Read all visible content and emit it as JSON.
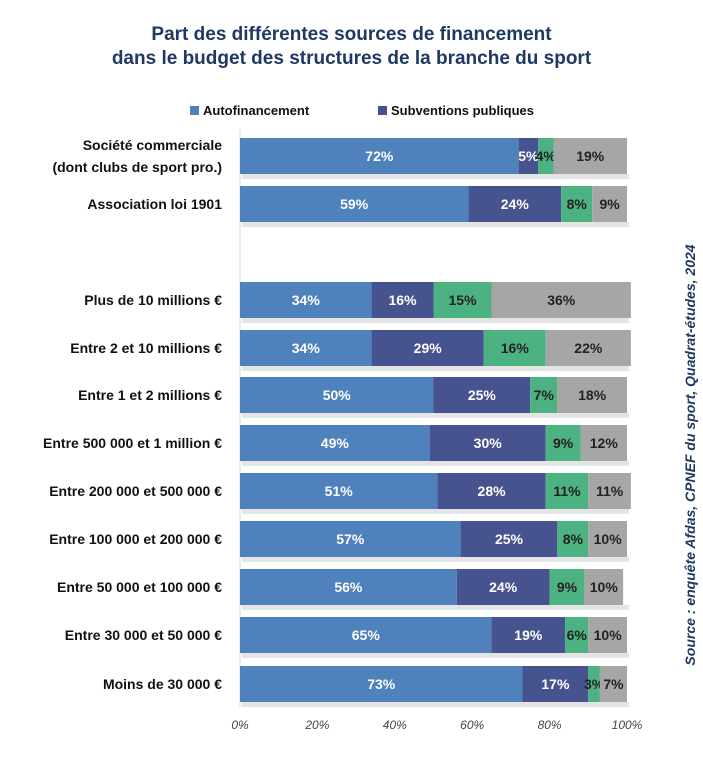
{
  "title_line1": "Part des différentes sources de financement",
  "title_line2": "dans le budget des structures de la branche du sport",
  "source": "Source : enquête Afdas, CPNEF du sport, Quadrat-études, 2024",
  "colors": {
    "autofinancement": "#4F81BD",
    "subventions": "#47538F",
    "green": "#4CB282",
    "gray": "#A6A6A6",
    "title": "#1F3864"
  },
  "chart_data": {
    "type": "bar",
    "orientation": "horizontal",
    "stacked": true,
    "xlim": [
      0,
      100
    ],
    "x_ticks": [
      "0%",
      "20%",
      "40%",
      "60%",
      "80%",
      "100%"
    ],
    "legend": {
      "placement": "top",
      "entries": [
        "Autofinancement",
        "Subventions publiques"
      ]
    },
    "categories": [
      {
        "label": [
          "Société commerciale",
          "(dont clubs de sport pro.)"
        ],
        "values": [
          72,
          5,
          4,
          19
        ]
      },
      {
        "label": [
          "Association loi 1901"
        ],
        "values": [
          59,
          24,
          8,
          9
        ]
      },
      {
        "label": [
          "Plus de 10 millions €"
        ],
        "values": [
          34,
          16,
          15,
          36
        ]
      },
      {
        "label": [
          "Entre 2 et 10 millions €"
        ],
        "values": [
          34,
          29,
          16,
          22
        ]
      },
      {
        "label": [
          "Entre 1 et 2 millions €"
        ],
        "values": [
          50,
          25,
          7,
          18
        ]
      },
      {
        "label": [
          "Entre 500 000 et 1 million €"
        ],
        "values": [
          49,
          30,
          9,
          12
        ]
      },
      {
        "label": [
          "Entre 200 000 et 500 000 €"
        ],
        "values": [
          51,
          28,
          11,
          11
        ]
      },
      {
        "label": [
          "Entre 100 000 et 200 000 €"
        ],
        "values": [
          57,
          25,
          8,
          10
        ]
      },
      {
        "label": [
          "Entre 50 000 et 100 000 €"
        ],
        "values": [
          56,
          24,
          9,
          10
        ]
      },
      {
        "label": [
          "Entre 30 000 et 50 000 €"
        ],
        "values": [
          65,
          19,
          6,
          10
        ]
      },
      {
        "label": [
          "Moins de 30 000 €"
        ],
        "values": [
          73,
          17,
          3,
          7
        ]
      }
    ],
    "series": [
      {
        "name": "Autofinancement"
      },
      {
        "name": "Subventions publiques"
      },
      {},
      {}
    ]
  }
}
